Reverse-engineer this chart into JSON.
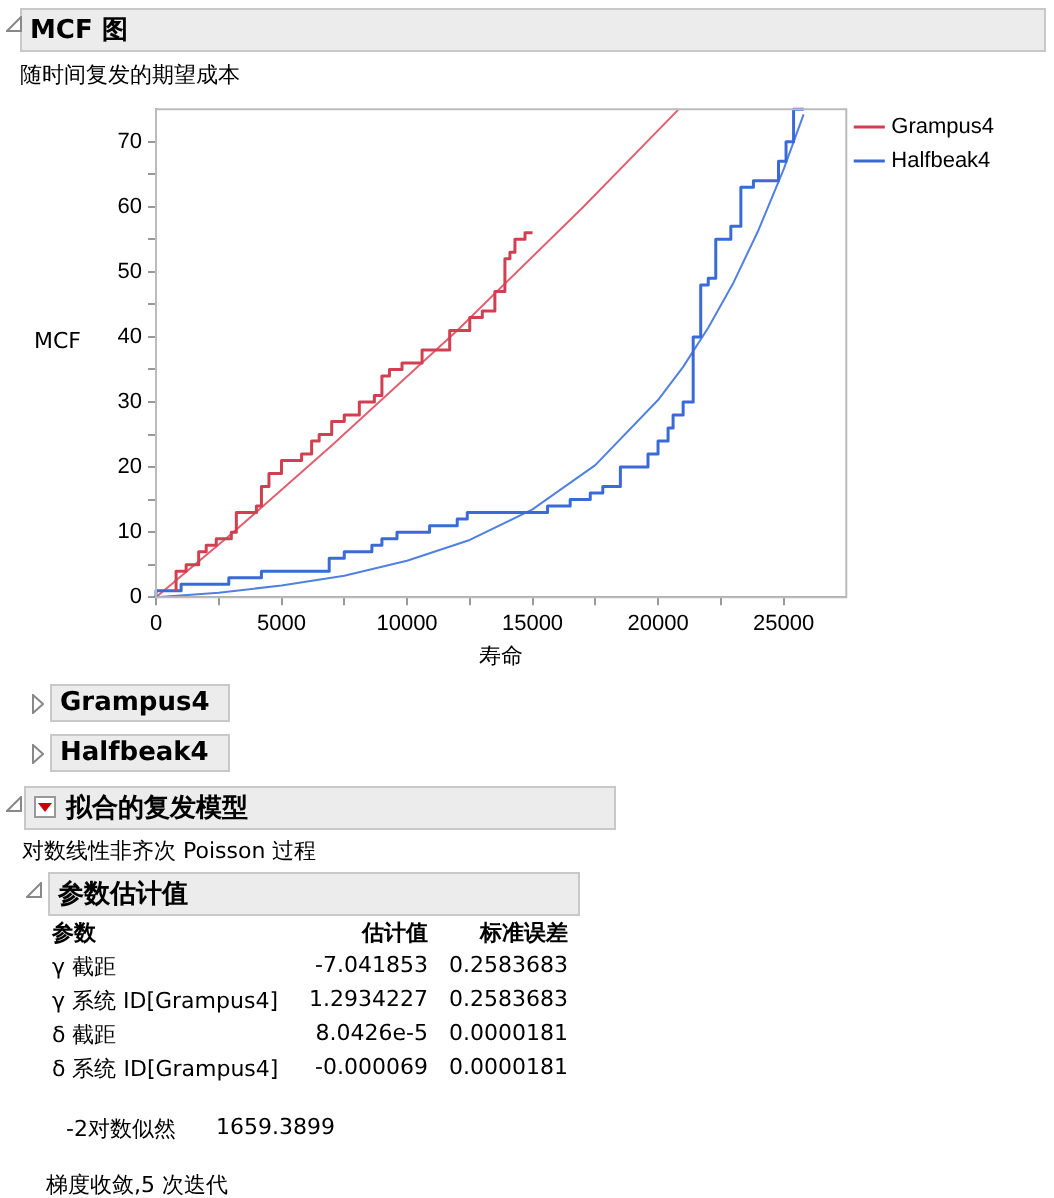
{
  "chart_data": {
    "type": "step",
    "title": "MCF 图",
    "subtitle": "随时间复发的期望成本",
    "xlabel": "寿命",
    "ylabel": "MCF",
    "xlim": [
      0,
      27500
    ],
    "ylim": [
      0,
      75
    ],
    "xticks": [
      0,
      {
        "value": 2500,
        "label": null
      },
      5000,
      {
        "value": 7500,
        "label": null
      },
      10000,
      {
        "value": 12500,
        "label": null
      },
      15000,
      {
        "value": 17500,
        "label": null
      },
      20000,
      {
        "value": 22500,
        "label": null
      },
      25000
    ],
    "yticks": [
      0,
      {
        "value": 5,
        "label": null
      },
      10,
      {
        "value": 15,
        "label": null
      },
      20,
      {
        "value": 25,
        "label": null
      },
      30,
      {
        "value": 35,
        "label": null
      },
      40,
      {
        "value": 45,
        "label": null
      },
      50,
      {
        "value": 55,
        "label": null
      },
      60,
      {
        "value": 65,
        "label": null
      },
      70
    ],
    "legend": "right",
    "grid": false,
    "series": [
      {
        "name": "Grampus4",
        "type": "step",
        "color": "#d04050",
        "x": [
          800,
          1200,
          1700,
          2000,
          2400,
          3000,
          3200,
          4000,
          4200,
          4500,
          5000,
          5800,
          6200,
          6500,
          7000,
          7500,
          8100,
          8700,
          9000,
          9300,
          9800,
          10600,
          11700,
          12500,
          13000,
          13500,
          13900,
          14100,
          14300,
          14700,
          15000
        ],
        "values": [
          1,
          4,
          5,
          7,
          8,
          9,
          10,
          13,
          14,
          17,
          19,
          21,
          22,
          24,
          25,
          27,
          28,
          30,
          31,
          34,
          35,
          36,
          38,
          41,
          43,
          44,
          47,
          52,
          53,
          55,
          56
        ]
      },
      {
        "name": "Halfbeak4",
        "type": "step",
        "color": "#3a6ad8",
        "x": [
          0,
          1000,
          2900,
          4200,
          6900,
          7500,
          8600,
          9000,
          9600,
          10900,
          12000,
          12400,
          15600,
          16500,
          17300,
          17800,
          18500,
          19600,
          20000,
          20400,
          20600,
          21000,
          21400,
          21700,
          22000,
          22300,
          22900,
          23300,
          23800,
          24800,
          25100,
          25400,
          25800
        ],
        "values": [
          0,
          1,
          2,
          3,
          4,
          6,
          7,
          8,
          9,
          10,
          11,
          12,
          13,
          14,
          15,
          16,
          17,
          20,
          22,
          24,
          26,
          28,
          30,
          40,
          48,
          49,
          55,
          57,
          63,
          64,
          67,
          70,
          75
        ]
      },
      {
        "type": "line",
        "color": "#e06070",
        "x": [
          0,
          3000,
          7000,
          12000,
          17000,
          20800
        ],
        "values": [
          0,
          9.7,
          23.3,
          41.0,
          59.9,
          74.9
        ]
      },
      {
        "type": "line",
        "color": "#5080e0",
        "x": [
          0,
          2500,
          5000,
          7500,
          10000,
          12500,
          15000,
          17500,
          20000,
          21000,
          22000,
          23000,
          24000,
          25000,
          25800
        ],
        "values": [
          0,
          0.7,
          1.8,
          3.3,
          5.6,
          8.8,
          13.5,
          20.3,
          30.3,
          35.4,
          41.4,
          48.3,
          56.4,
          65.7,
          74.2
        ]
      }
    ],
    "annotations": [
      "Grampus4",
      "Halfbeak4",
      "拟合的复发模型",
      "对数线性非齐次 Poisson 过程",
      "参数估计值",
      "参数",
      "估计值",
      "标准误差",
      "γ 截距",
      "-7.041853",
      "0.2583683",
      "γ 系统 ID[Grampus4]",
      "1.2934227",
      "0.2583683",
      "δ 截距",
      "8.0426e-5",
      "0.0000181",
      "δ 系统 ID[Grampus4]",
      "-0.000069",
      "0.0000181",
      "-2对数似然",
      "1659.3899",
      "梯度收敛,5 次迭代"
    ]
  }
}
